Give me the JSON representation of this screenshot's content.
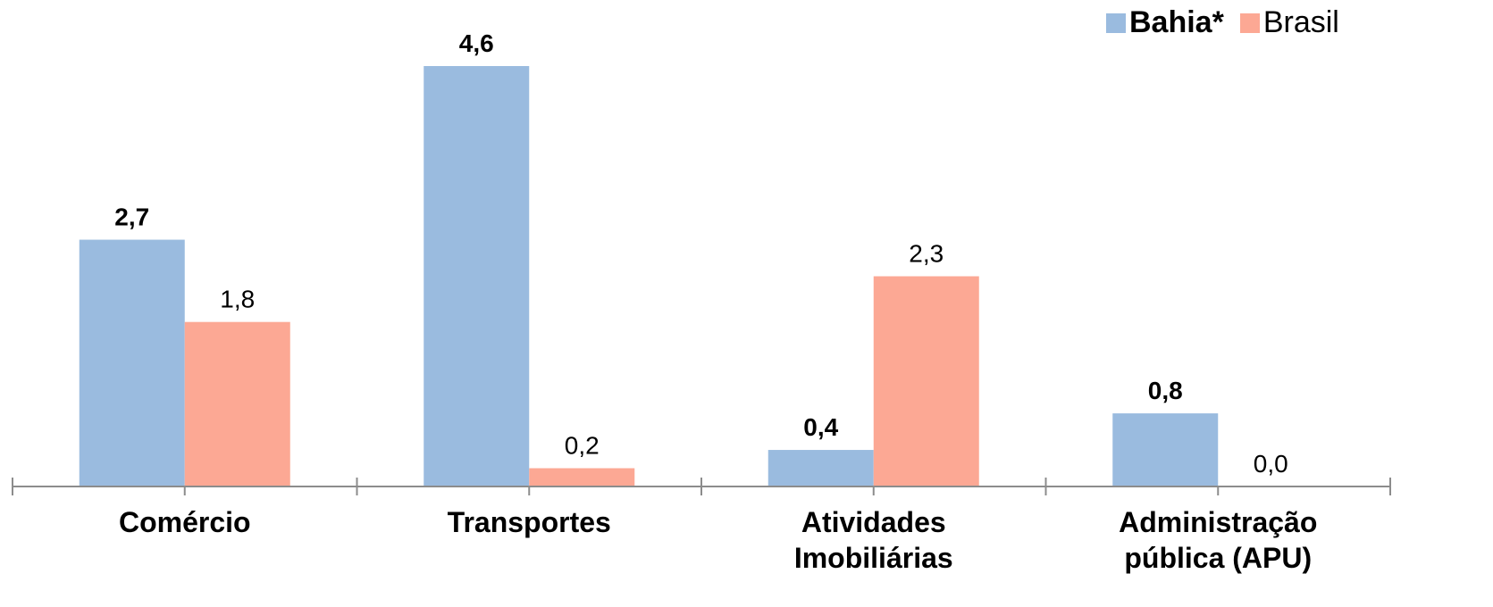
{
  "chart_data": {
    "type": "bar",
    "categories": [
      [
        "Comércio"
      ],
      [
        "Transportes"
      ],
      [
        "Atividades",
        "Imobiliárias"
      ],
      [
        "Administração",
        "pública (APU)"
      ]
    ],
    "series": [
      {
        "name": "Bahia*",
        "values": [
          2.7,
          4.6,
          0.4,
          0.8
        ],
        "labels": [
          "2,7",
          "4,6",
          "0,4",
          "0,8"
        ],
        "color": "#9ABBDF",
        "label_bold": true
      },
      {
        "name": "Brasil",
        "values": [
          1.8,
          0.2,
          2.3,
          0.0
        ],
        "labels": [
          "1,8",
          "0,2",
          "2,3",
          "0,0"
        ],
        "color": "#FCA894",
        "label_bold": false
      }
    ],
    "ylim": [
      0,
      4.6
    ],
    "axis_color": "#8C8C8C",
    "legend_position": "top-right",
    "grid": false
  }
}
